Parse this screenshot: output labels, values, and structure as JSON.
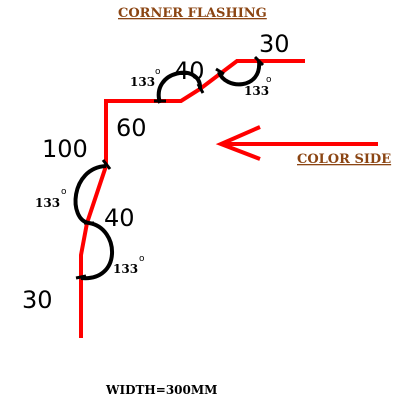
{
  "title": "CORNER FLASHING",
  "color_side_label": "COLOR SIDE",
  "width_label": "WIDTH=300MM",
  "dimensions": {
    "d1": "30",
    "d2": "40",
    "d3": "60",
    "d4": "100",
    "d5": "40",
    "d6": "30"
  },
  "angles": {
    "a1": "133",
    "a2": "133",
    "a3": "133",
    "a4": "133",
    "degree_symbol": "o"
  },
  "colors": {
    "profile": "#ff0000",
    "arrow": "#ff0000",
    "arc": "#000000",
    "title": "#8b4513",
    "color_side": "#8b4513"
  }
}
